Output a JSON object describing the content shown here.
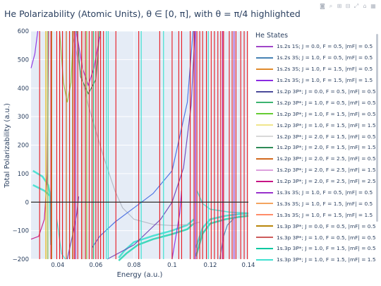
{
  "title": "He Polarizability (Atomic Units), θ ∈ [0, π], with θ = π/4 highlighted",
  "modebar": {
    "icons": [
      "camera-icon",
      "zoom-icon",
      "plus-icon",
      "minus-icon",
      "autoscale-icon",
      "reset-icon",
      "plotly-logo"
    ]
  },
  "chart_data": {
    "type": "line",
    "title": "He Polarizability (Atomic Units), θ ∈ [0, π], with θ = π/4 highlighted",
    "xlabel": "Energy (a.u.)",
    "ylabel": "Total Polarizability (a.u.)",
    "xlim": [
      0.026,
      0.14
    ],
    "ylim": [
      -200,
      600
    ],
    "xticks": [
      "0.04",
      "0.06",
      "0.08",
      "0.1",
      "0.12",
      "0.14"
    ],
    "xtick_values": [
      0.04,
      0.06,
      0.08,
      0.1,
      0.12,
      0.14
    ],
    "yticks": [
      "−200",
      "−100",
      "0",
      "100",
      "200",
      "300",
      "400",
      "500",
      "600"
    ],
    "ytick_values": [
      -200,
      -100,
      0,
      100,
      200,
      300,
      400,
      500,
      600
    ],
    "grid": true,
    "zero_line": true,
    "legend": {
      "title": "He States",
      "placement": "right",
      "entries": [
        {
          "label": "1s.2s 1S; J = 0.0, F = 0.5, |mF| = 0.5",
          "color": "#a046c8"
        },
        {
          "label": "1s.2s 3S; J = 1.0, F = 0.5, |mF| = 0.5",
          "color": "#4682b4"
        },
        {
          "label": "1s.2s 3S; J = 1.0, F = 1.5, |mF| = 0.5",
          "color": "#e08a2c"
        },
        {
          "label": "1s.2s 3S; J = 1.0, F = 1.5, |mF| = 1.5",
          "color": "#8a2be2"
        },
        {
          "label": "1s.2p 3P*; J = 0.0, F = 0.5, |mF| = 0.5",
          "color": "#4b4b9a"
        },
        {
          "label": "1s.2p 3P*; J = 1.0, F = 0.5, |mF| = 0.5",
          "color": "#3cb371"
        },
        {
          "label": "1s.2p 3P*; J = 1.0, F = 1.5, |mF| = 0.5",
          "color": "#66cc33"
        },
        {
          "label": "1s.2p 3P*; J = 1.0, F = 1.5, |mF| = 1.5",
          "color": "#f0e68c"
        },
        {
          "label": "1s.2p 3P*; J = 2.0, F = 1.5, |mF| = 0.5",
          "color": "#d8d8d8"
        },
        {
          "label": "1s.2p 3P*; J = 2.0, F = 1.5, |mF| = 1.5",
          "color": "#2e8b57"
        },
        {
          "label": "1s.2p 3P*; J = 2.0, F = 2.5, |mF| = 0.5",
          "color": "#d2691e"
        },
        {
          "label": "1s.2p 3P*; J = 2.0, F = 2.5, |mF| = 1.5",
          "color": "#dda0dd"
        },
        {
          "label": "1s.2p 3P*; J = 2.0, F = 2.5, |mF| = 2.5",
          "color": "#c71585"
        },
        {
          "label": "1s.3s 3S; J = 1.0, F = 0.5, |mF| = 0.5",
          "color": "#9932cc"
        },
        {
          "label": "1s.3s 3S; J = 1.0, F = 1.5, |mF| = 0.5",
          "color": "#f4a460"
        },
        {
          "label": "1s.3s 3S; J = 1.0, F = 1.5, |mF| = 1.5",
          "color": "#ff8c69"
        },
        {
          "label": "1s.3p 3P*; J = 0.0, F = 0.5, |mF| = 0.5",
          "color": "#b8860b"
        },
        {
          "label": "1s.3p 3P*; J = 1.0, F = 0.5, |mF| = 0.5",
          "color": "#cd5c5c"
        },
        {
          "label": "1s.3p 3P*; J = 1.0, F = 1.5, |mF| = 0.5",
          "color": "#00c8a0"
        },
        {
          "label": "1s.3p 3P*; J = 1.0, F = 1.5, |mF| = 1.5",
          "color": "#40e0d0"
        }
      ]
    },
    "resonances": [
      0.0305,
      0.0365,
      0.0395,
      0.041,
      0.0425,
      0.0462,
      0.048,
      0.0488,
      0.0505,
      0.0525,
      0.0545,
      0.0565,
      0.058,
      0.06,
      0.0612,
      0.0625,
      0.064,
      0.0705,
      0.0825,
      0.0935,
      0.1,
      0.1035,
      0.105,
      0.1095,
      0.1115,
      0.113,
      0.1145,
      0.116,
      0.118,
      0.1205,
      0.1222,
      0.124,
      0.1255,
      0.127,
      0.13,
      0.1315,
      0.1335,
      0.136,
      0.1378,
      0.1395
    ],
    "colored_resonances": [
      {
        "x": 0.0338,
        "color": "#e8b400"
      },
      {
        "x": 0.0348,
        "color": "#8fbc3f"
      },
      {
        "x": 0.0365,
        "color": "#c71585"
      },
      {
        "x": 0.0368,
        "color": "#b8860b"
      },
      {
        "x": 0.0445,
        "color": "#d2691e"
      },
      {
        "x": 0.0478,
        "color": "#9acd32"
      },
      {
        "x": 0.0494,
        "color": "#a046c8"
      },
      {
        "x": 0.0532,
        "color": "#d2b48c"
      },
      {
        "x": 0.0552,
        "color": "#8fbc3f"
      },
      {
        "x": 0.0588,
        "color": "#3cb371"
      },
      {
        "x": 0.0655,
        "color": "#40e0d0"
      },
      {
        "x": 0.0665,
        "color": "#40e0d0"
      },
      {
        "x": 0.0838,
        "color": "#40e0d0"
      },
      {
        "x": 0.0955,
        "color": "#40e0d0"
      },
      {
        "x": 0.1122,
        "color": "#8a2be2"
      },
      {
        "x": 0.119,
        "color": "#40e0d0"
      },
      {
        "x": 0.1265,
        "color": "#c71585"
      },
      {
        "x": 0.1325,
        "color": "#9932cc"
      }
    ],
    "series": [
      {
        "name": "turquoise band",
        "color": "#40e0d0",
        "width": 2.5,
        "points": [
          [
            0.027,
            60
          ],
          [
            0.033,
            40
          ],
          [
            0.036,
            22
          ],
          [
            0.0365,
            -150
          ]
        ]
      },
      {
        "name": "turquoise band 2",
        "color": "#40e0d0",
        "width": 2.5,
        "points": [
          [
            0.027,
            110
          ],
          [
            0.032,
            90
          ],
          [
            0.035,
            60
          ],
          [
            0.0362,
            20
          ],
          [
            0.0365,
            -120
          ]
        ]
      },
      {
        "name": "lower turquoise cluster",
        "color": "#40e0d0",
        "width": 2.5,
        "points": [
          [
            0.072,
            -195
          ],
          [
            0.075,
            -170
          ],
          [
            0.08,
            -140
          ],
          [
            0.09,
            -118
          ],
          [
            0.1,
            -100
          ],
          [
            0.108,
            -80
          ],
          [
            0.1115,
            -60
          ]
        ]
      },
      {
        "name": "lower turquoise cluster 2",
        "color": "#2fd5b4",
        "width": 2.5,
        "points": [
          [
            0.072,
            -205
          ],
          [
            0.076,
            -180
          ],
          [
            0.082,
            -150
          ],
          [
            0.09,
            -130
          ],
          [
            0.1,
            -112
          ],
          [
            0.108,
            -95
          ],
          [
            0.1113,
            -75
          ]
        ]
      },
      {
        "name": "post-resonance turquoise",
        "color": "#40e0d0",
        "width": 2.5,
        "points": [
          [
            0.1125,
            -160
          ],
          [
            0.116,
            -90
          ],
          [
            0.12,
            -60
          ],
          [
            0.128,
            -48
          ],
          [
            0.135,
            -42
          ],
          [
            0.14,
            -40
          ]
        ]
      },
      {
        "name": "post-resonance turquoise 2",
        "color": "#2fd5b4",
        "width": 2.5,
        "points": [
          [
            0.1125,
            -190
          ],
          [
            0.116,
            -110
          ],
          [
            0.12,
            -75
          ],
          [
            0.128,
            -60
          ],
          [
            0.135,
            -52
          ],
          [
            0.14,
            -48
          ]
        ]
      },
      {
        "name": "upper teal decay",
        "color": "#40e0d0",
        "width": 1.5,
        "points": [
          [
            0.113,
            40
          ],
          [
            0.116,
            -5
          ],
          [
            0.12,
            -25
          ],
          [
            0.13,
            -35
          ],
          [
            0.14,
            -38
          ]
        ]
      },
      {
        "name": "grey curve",
        "color": "#b0b8c4",
        "width": 1.2,
        "points": [
          [
            0.048,
            580
          ],
          [
            0.056,
            340
          ],
          [
            0.064,
            160
          ],
          [
            0.07,
            40
          ],
          [
            0.074,
            -20
          ],
          [
            0.08,
            -60
          ],
          [
            0.09,
            -78
          ],
          [
            0.1,
            -82
          ],
          [
            0.11,
            -78
          ],
          [
            0.1145,
            -70
          ]
        ]
      },
      {
        "name": "purple descending",
        "color": "#6a3fb5",
        "width": 1.2,
        "points": [
          [
            0.066,
            -200
          ],
          [
            0.08,
            -150
          ],
          [
            0.094,
            -60
          ],
          [
            0.1,
            0
          ],
          [
            0.106,
            120
          ],
          [
            0.11,
            340
          ],
          [
            0.112,
            600
          ]
        ]
      },
      {
        "name": "blue descending",
        "color": "#4169e1",
        "width": 1.2,
        "points": [
          [
            0.058,
            -160
          ],
          [
            0.062,
            -120
          ],
          [
            0.07,
            -70
          ],
          [
            0.08,
            -20
          ],
          [
            0.09,
            30
          ],
          [
            0.1,
            110
          ],
          [
            0.108,
            350
          ],
          [
            0.111,
            600
          ]
        ]
      },
      {
        "name": "violet left spike",
        "color": "#8a2be2",
        "width": 1.2,
        "points": [
          [
            0.026,
            470
          ],
          [
            0.028,
            520
          ],
          [
            0.0295,
            600
          ]
        ]
      },
      {
        "name": "magenta left arc",
        "color": "#c71585",
        "width": 1.2,
        "points": [
          [
            0.026,
            -130
          ],
          [
            0.03,
            -120
          ],
          [
            0.033,
            -60
          ],
          [
            0.0345,
            100
          ],
          [
            0.0352,
            600
          ]
        ]
      },
      {
        "name": "olive arc",
        "color": "#8fbc3f",
        "width": 1.2,
        "points": [
          [
            0.041,
            600
          ],
          [
            0.043,
            420
          ],
          [
            0.045,
            350
          ],
          [
            0.047,
            420
          ],
          [
            0.0482,
            600
          ]
        ]
      },
      {
        "name": "olive arc 2",
        "color": "#2e8b57",
        "width": 1.2,
        "points": [
          [
            0.05,
            600
          ],
          [
            0.052,
            440
          ],
          [
            0.056,
            380
          ],
          [
            0.06,
            430
          ],
          [
            0.062,
            600
          ]
        ]
      },
      {
        "name": "violet arc 3",
        "color": "#9932cc",
        "width": 1.2,
        "points": [
          [
            0.05,
            590
          ],
          [
            0.053,
            470
          ],
          [
            0.056,
            410
          ],
          [
            0.059,
            470
          ],
          [
            0.062,
            580
          ]
        ]
      },
      {
        "name": "purple low arc",
        "color": "#6a3fb5",
        "width": 1.2,
        "points": [
          [
            0.045,
            -200
          ],
          [
            0.048,
            -110
          ],
          [
            0.05,
            -40
          ],
          [
            0.051,
            20
          ]
        ]
      },
      {
        "name": "teal arc",
        "color": "#40e0d0",
        "width": 1.2,
        "points": [
          [
            0.0395,
            -60
          ],
          [
            0.042,
            -180
          ],
          [
            0.044,
            -200
          ]
        ]
      },
      {
        "name": "purple slope right",
        "color": "#8a2be2",
        "width": 1.2,
        "points": [
          [
            0.1,
            -200
          ],
          [
            0.102,
            -120
          ],
          [
            0.104,
            -40
          ],
          [
            0.105,
            40
          ]
        ]
      },
      {
        "name": "blue slope right",
        "color": "#4682b4",
        "width": 1.2,
        "points": [
          [
            0.125,
            -200
          ],
          [
            0.127,
            -120
          ],
          [
            0.129,
            -80
          ],
          [
            0.132,
            -60
          ]
        ]
      }
    ]
  }
}
